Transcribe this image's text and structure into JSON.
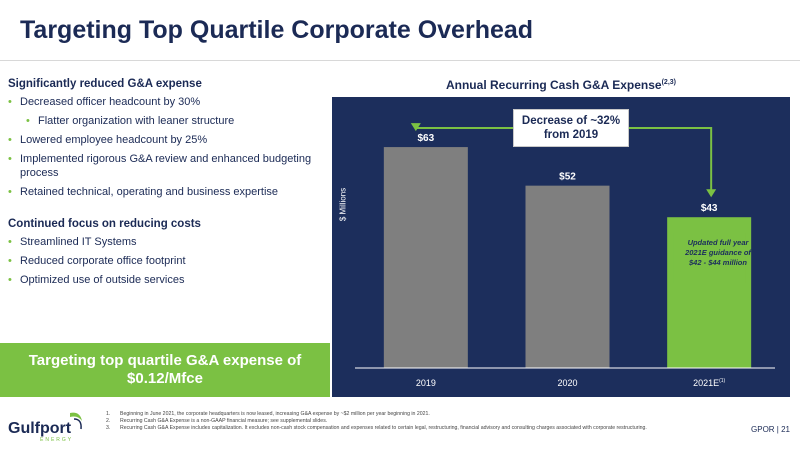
{
  "slide": {
    "title": "Targeting Top Quartile Corporate Overhead",
    "page_id": "GPOR | 21"
  },
  "left": {
    "section1": {
      "heading": "Significantly reduced G&A expense",
      "bullets": [
        "Decreased officer headcount by 30%",
        "Flatter organization with leaner structure",
        "Lowered employee headcount by 25%",
        "Implemented rigorous G&A review and enhanced budgeting process",
        "Retained technical, operating and business expertise"
      ]
    },
    "section2": {
      "heading": "Continued focus on reducing costs",
      "bullets": [
        "Streamlined IT Systems",
        "Reduced corporate office footprint",
        "Optimized use of outside services"
      ]
    },
    "callout": "Targeting top quartile G&A expense of $0.12/Mfce"
  },
  "chart_data": {
    "type": "bar",
    "title": "Annual Recurring Cash G&A Expense",
    "title_sup": "(2,3)",
    "ylabel": "$ Millions",
    "categories": [
      "2019",
      "2020",
      "2021E"
    ],
    "category_sups": [
      "",
      "",
      "(1)"
    ],
    "values": [
      63,
      52,
      43
    ],
    "value_labels": [
      "$63",
      "$52",
      "$43"
    ],
    "bar_colors": [
      "#7f7f7f",
      "#7f7f7f",
      "#7bc143"
    ],
    "ylim": [
      0,
      75
    ],
    "grid": false,
    "annotation": "Decrease of ~32% from 2019",
    "bar_note": "Updated full year 2021E guidance of $42 - $44 million"
  },
  "colors": {
    "navy": "#1c2e5c",
    "green": "#7bc143",
    "gray_bar": "#7f7f7f"
  },
  "logo": {
    "name": "Gulfport",
    "sub": "ENERGY"
  },
  "footnotes": [
    "Beginning in June 2021, the corporate headquarters is now leased, increasing G&A expense by ~$2 million per year beginning in 2021.",
    "Recurring Cash G&A Expense is a non-GAAP financial measure; see supplemental slides.",
    "Recurring Cash G&A Expense includes capitalization. It excludes non-cash stock compensation and expenses related to certain legal, restructuring, financial advisory and consulting charges associated with corporate restructuring."
  ]
}
